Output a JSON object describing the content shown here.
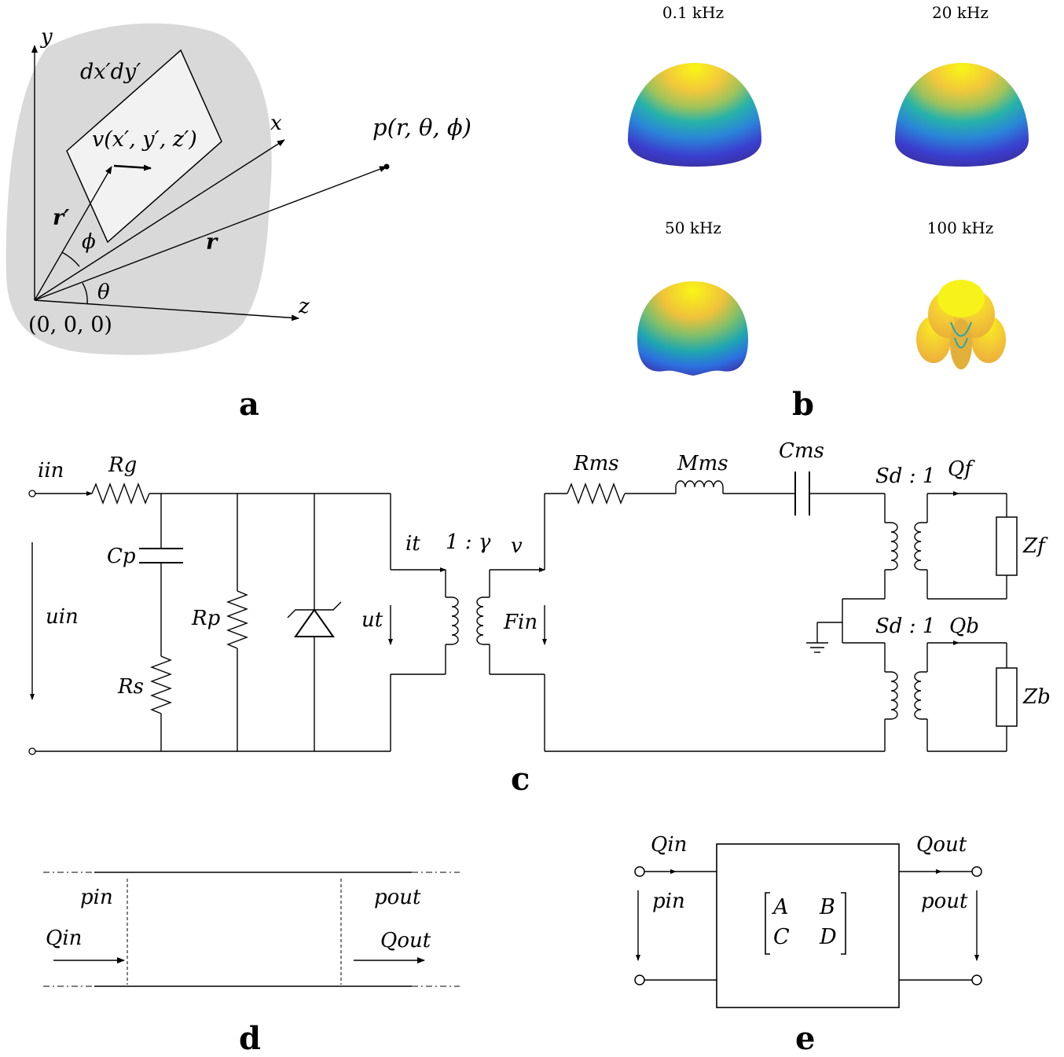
{
  "panel_a": {
    "label": "a",
    "axis_y": "y",
    "axis_x": "x",
    "axis_z": "z",
    "element_area": "dx′dy′",
    "velocity": "v(x′, y′, z′)",
    "point": "p(r, θ, ϕ)",
    "r_prime": "r′",
    "r": "r",
    "phi": "ϕ",
    "theta": "θ",
    "origin": "(0, 0, 0)"
  },
  "panel_b": {
    "label": "b",
    "freq_1": "0.1 kHz",
    "freq_2": "20 kHz",
    "freq_3": "50 kHz",
    "freq_4": "100 kHz",
    "colors": {
      "low": "#3a2d9a",
      "mid": "#1fa7b0",
      "high": "#f2d431",
      "peak": "#f9f616"
    }
  },
  "panel_c": {
    "label": "c",
    "i_in": "iin",
    "R_g": "Rg",
    "C_p": "Cp",
    "u_in": "uin",
    "R_p": "Rp",
    "R_s": "Rs",
    "u_t": "ut",
    "i_t": "it",
    "ratio": "1 : γ",
    "v": "v",
    "F_in": "Fin",
    "R_ms": "Rms",
    "M_ms": "Mms",
    "C_ms": "Cms",
    "S_d_f": "Sd : 1",
    "Q_f": "Qf",
    "Z_f": "Zf",
    "S_d_b": "Sd : 1",
    "Q_b": "Qb",
    "Z_b": "Zb"
  },
  "panel_d": {
    "label": "d",
    "p_in": "pin",
    "p_out": "pout",
    "Q_in": "Qin",
    "Q_out": "Qout"
  },
  "panel_e": {
    "label": "e",
    "Q_in": "Qin",
    "p_in": "pin",
    "Q_out": "Qout",
    "p_out": "pout",
    "matrix_A": "A",
    "matrix_B": "B",
    "matrix_C": "C",
    "matrix_D": "D"
  }
}
